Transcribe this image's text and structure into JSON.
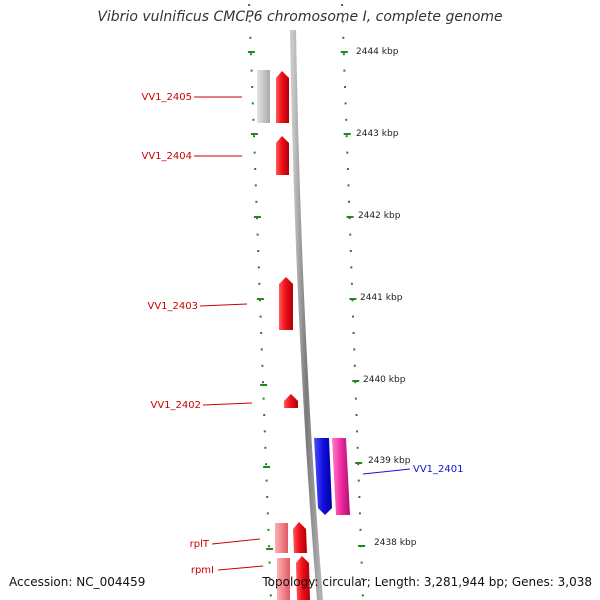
{
  "title": "Vibrio vulnificus CMCP6 chromosome I, complete genome",
  "footer": {
    "accession": "Accession: NC_004459",
    "info": "Topology: circular; Length: 3,281,944 bp; Genes: 3,038"
  },
  "colors": {
    "tick": "#1e8a1e",
    "forward_gene": "#e8121a",
    "forward_gene_pale": "#ee7d82",
    "pseudo_gene": "#c4c4c4",
    "reverse_gene": "#1414e0",
    "reverse_gene_alt": "#ee2a9e",
    "label_red": "#cc0000",
    "label_blue": "#1414cc",
    "backbone": "#8a8a8a"
  },
  "positions": [
    {
      "label": "2444 kbp"
    },
    {
      "label": "2443 kbp"
    },
    {
      "label": "2442 kbp"
    },
    {
      "label": "2441 kbp"
    },
    {
      "label": "2440 kbp"
    },
    {
      "label": "2439 kbp"
    },
    {
      "label": "2438 kbp"
    }
  ],
  "genes": [
    {
      "name": "VV1_2405",
      "strand": "forward"
    },
    {
      "name": "VV1_2404",
      "strand": "forward"
    },
    {
      "name": "VV1_2403",
      "strand": "forward"
    },
    {
      "name": "VV1_2402",
      "strand": "forward"
    },
    {
      "name": "VV1_2401",
      "strand": "reverse"
    },
    {
      "name": "rplT",
      "strand": "forward"
    },
    {
      "name": "rpmI",
      "strand": "forward"
    }
  ]
}
